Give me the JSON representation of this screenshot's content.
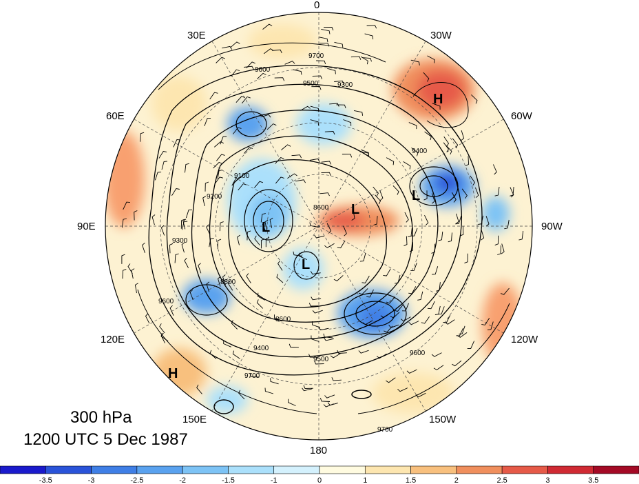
{
  "caption": {
    "level": "300 hPa",
    "datetime": "1200 UTC 5 Dec 1987"
  },
  "longitude_labels": [
    "0",
    "30W",
    "60W",
    "90W",
    "120W",
    "150W",
    "180",
    "150E",
    "120E",
    "90E",
    "60E",
    "30E"
  ],
  "pressure_centers": [
    {
      "label": "H",
      "kind": "high"
    },
    {
      "label": "H",
      "kind": "high"
    },
    {
      "label": "L",
      "kind": "low"
    },
    {
      "label": "L",
      "kind": "low"
    },
    {
      "label": "L",
      "kind": "low"
    },
    {
      "label": "L",
      "kind": "low"
    }
  ],
  "contour_labels": [
    "9700",
    "9600",
    "9500",
    "9400",
    "9300",
    "9200",
    "9100",
    "8600",
    "9700",
    "9600",
    "9500",
    "9400",
    "9300",
    "8800",
    "8600",
    "9600",
    "9700"
  ],
  "colorbar": {
    "ticks": [
      "-3.5",
      "-3",
      "-2.5",
      "-2",
      "-1.5",
      "-1",
      "0",
      "1",
      "1.5",
      "2",
      "2.5",
      "3",
      "3.5"
    ],
    "colors": [
      "#1a1acc",
      "#2a53d9",
      "#3f7fe6",
      "#5aa2ef",
      "#7dc3f5",
      "#abe0fb",
      "#d4f1fd",
      "#fffbe0",
      "#fde6b0",
      "#f8c07e",
      "#f08f5d",
      "#e65a48",
      "#d02a33",
      "#a40a25"
    ]
  },
  "colors": {
    "map_base": "#fdf2d2",
    "outline": "#000000"
  }
}
